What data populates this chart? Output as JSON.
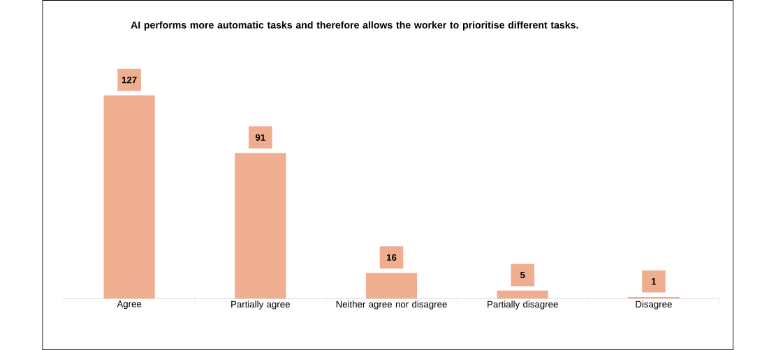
{
  "chart_data": {
    "type": "bar",
    "title": "AI performs more automatic tasks and therefore allows the worker to prioritise different tasks.",
    "categories": [
      "Agree",
      "Partially agree",
      "Neither agree nor disagree",
      "Partially disagree",
      "Disagree"
    ],
    "values": [
      127,
      91,
      16,
      5,
      1
    ],
    "color": "#f0ae90",
    "data_labels": true
  }
}
